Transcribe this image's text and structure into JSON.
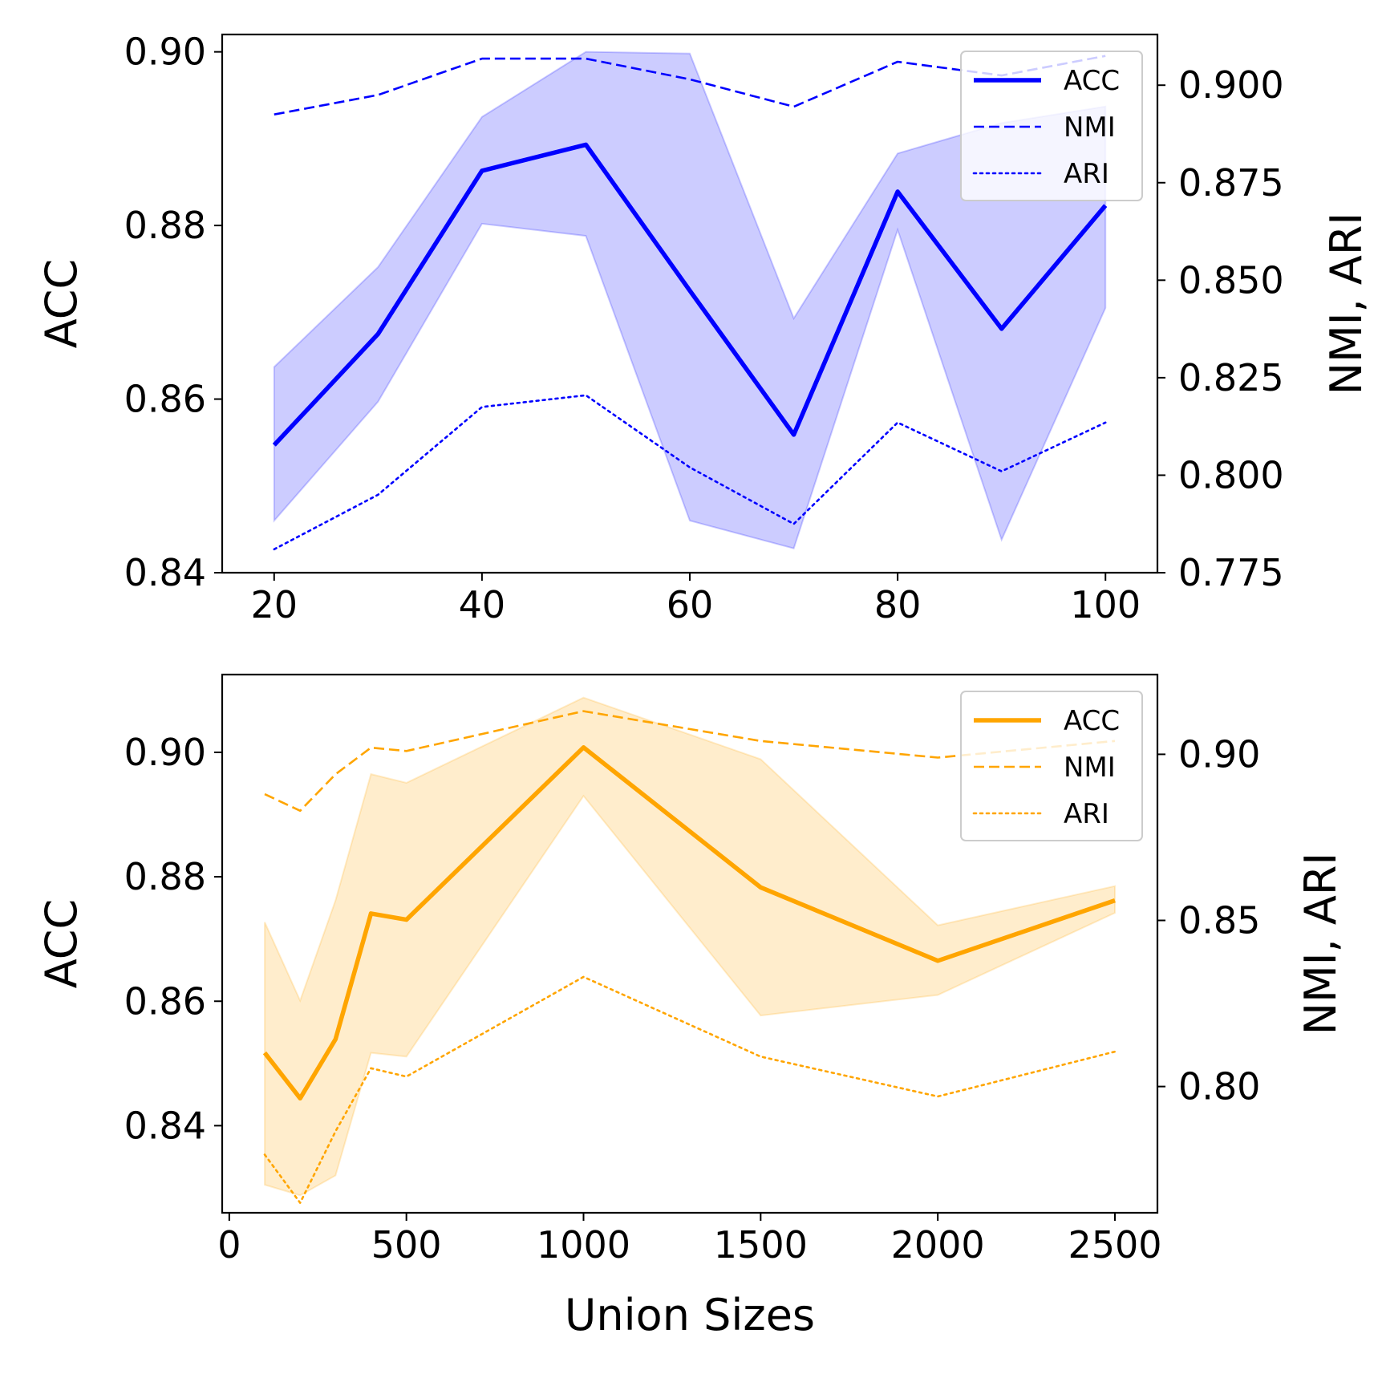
{
  "chart_data": [
    {
      "type": "line",
      "title": "",
      "xlabel": "",
      "ylabel": "ACC",
      "ylabel_right": "NMI, ARI",
      "x": [
        20,
        30,
        40,
        50,
        60,
        70,
        80,
        90,
        100
      ],
      "xlim": [
        15,
        105
      ],
      "ylim": [
        0.84,
        0.902
      ],
      "ylim_right": [
        0.775,
        0.913
      ],
      "xticks": [
        20,
        40,
        60,
        80,
        100
      ],
      "xtick_labels": [
        "20",
        "40",
        "60",
        "80",
        "100"
      ],
      "yticks": [
        0.84,
        0.86,
        0.88,
        0.9
      ],
      "ytick_labels": [
        "0.84",
        "0.86",
        "0.88",
        "0.90"
      ],
      "yticks_right": [
        0.775,
        0.8,
        0.825,
        0.85,
        0.875,
        0.9
      ],
      "ytick_labels_right": [
        "0.775",
        "0.800",
        "0.825",
        "0.850",
        "0.875",
        "0.900"
      ],
      "color": "#0000ff",
      "band_color": "#ccccff",
      "band_x": [
        20,
        30,
        40,
        50,
        60,
        70,
        80,
        90,
        100
      ],
      "band_upper": [
        0.8637,
        0.8752,
        0.8925,
        0.9,
        0.8998,
        0.8693,
        0.8883,
        0.8918,
        0.8937
      ],
      "band_lower": [
        0.846,
        0.8597,
        0.8802,
        0.8788,
        0.846,
        0.8428,
        0.8795,
        0.8438,
        0.8705
      ],
      "legend_position": "upper right",
      "series": [
        {
          "name": "ACC",
          "axis": "left",
          "style": "solid",
          "values": [
            0.8547,
            0.8675,
            0.8863,
            0.8893,
            0.8725,
            0.8559,
            0.8839,
            0.8681,
            0.8823
          ]
        },
        {
          "name": "NMI",
          "axis": "right",
          "style": "dashed",
          "values": [
            0.8925,
            0.8975,
            0.9068,
            0.9068,
            0.9015,
            0.8945,
            0.906,
            0.9025,
            0.9075
          ]
        },
        {
          "name": "ARI",
          "axis": "right",
          "style": "dotted",
          "values": [
            0.781,
            0.795,
            0.8175,
            0.8205,
            0.802,
            0.7875,
            0.8135,
            0.801,
            0.8135
          ]
        }
      ]
    },
    {
      "type": "line",
      "title": "",
      "xlabel": "Union Sizes",
      "ylabel": "ACC",
      "ylabel_right": "NMI, ARI",
      "x": [
        100,
        200,
        300,
        400,
        500,
        1000,
        1500,
        2000,
        2500
      ],
      "xlim": [
        -20,
        2620
      ],
      "ylim": [
        0.826,
        0.9125
      ],
      "ylim_right": [
        0.762,
        0.924
      ],
      "xticks": [
        0,
        500,
        1000,
        1500,
        2000,
        2500
      ],
      "xtick_labels": [
        "0",
        "500",
        "1000",
        "1500",
        "2000",
        "2500"
      ],
      "yticks": [
        0.84,
        0.86,
        0.88,
        0.9
      ],
      "ytick_labels": [
        "0.84",
        "0.86",
        "0.88",
        "0.90"
      ],
      "yticks_right": [
        0.8,
        0.85,
        0.9
      ],
      "ytick_labels_right": [
        "0.80",
        "0.85",
        "0.90"
      ],
      "color": "#ffa500",
      "band_color": "#ffedcc",
      "band_x": [
        100,
        200,
        300,
        400,
        500,
        1000,
        1500,
        2000,
        2500
      ],
      "band_upper": [
        0.8727,
        0.8601,
        0.8762,
        0.8965,
        0.8951,
        0.9088,
        0.8989,
        0.8722,
        0.8785
      ],
      "band_lower": [
        0.8305,
        0.8288,
        0.832,
        0.8517,
        0.8511,
        0.893,
        0.8577,
        0.861,
        0.8742
      ],
      "legend_position": "upper right",
      "series": [
        {
          "name": "ACC",
          "axis": "left",
          "style": "solid",
          "values": [
            0.8517,
            0.8444,
            0.8539,
            0.8741,
            0.8731,
            0.9008,
            0.8783,
            0.8665,
            0.8762
          ]
        },
        {
          "name": "NMI",
          "axis": "right",
          "style": "dashed",
          "values": [
            0.888,
            0.883,
            0.894,
            0.902,
            0.901,
            0.913,
            0.904,
            0.899,
            0.904
          ]
        },
        {
          "name": "ARI",
          "axis": "right",
          "style": "dotted",
          "values": [
            0.7795,
            0.765,
            0.7865,
            0.8055,
            0.803,
            0.833,
            0.809,
            0.797,
            0.8105
          ]
        }
      ]
    }
  ]
}
